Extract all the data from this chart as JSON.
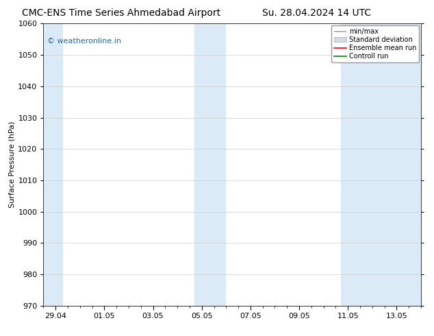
{
  "title_left": "CMC-ENS Time Series Ahmedabad Airport",
  "title_right": "Su. 28.04.2024 14 UTC",
  "ylabel": "Surface Pressure (hPa)",
  "ylim": [
    970,
    1060
  ],
  "yticks": [
    970,
    980,
    990,
    1000,
    1010,
    1020,
    1030,
    1040,
    1050,
    1060
  ],
  "xtick_labels": [
    "29.04",
    "01.05",
    "03.05",
    "05.05",
    "07.05",
    "09.05",
    "11.05",
    "13.05"
  ],
  "xtick_positions": [
    0,
    2,
    4,
    6,
    8,
    10,
    12,
    14
  ],
  "xlim": [
    -0.5,
    15.0
  ],
  "shaded_regions": [
    {
      "xstart": -0.5,
      "xend": 0.3,
      "color": "#daeaf6"
    },
    {
      "xstart": 5.7,
      "xend": 7.0,
      "color": "#daeaf6"
    },
    {
      "xstart": 11.7,
      "xend": 15.0,
      "color": "#daeaf6"
    }
  ],
  "watermark_text": "© weatheronline.in",
  "watermark_color": "#1a6ab5",
  "legend_items": [
    {
      "label": "min/max",
      "color": "#aaaaaa",
      "style": "errorbar"
    },
    {
      "label": "Standard deviation",
      "color": "#ccdde8",
      "style": "rect"
    },
    {
      "label": "Ensemble mean run",
      "color": "#ff0000",
      "style": "line"
    },
    {
      "label": "Controll run",
      "color": "#008000",
      "style": "line"
    }
  ],
  "bg_color": "#ffffff",
  "plot_bg_color": "#ffffff",
  "grid_color": "#cccccc",
  "font_size": 8,
  "title_font_size": 10
}
